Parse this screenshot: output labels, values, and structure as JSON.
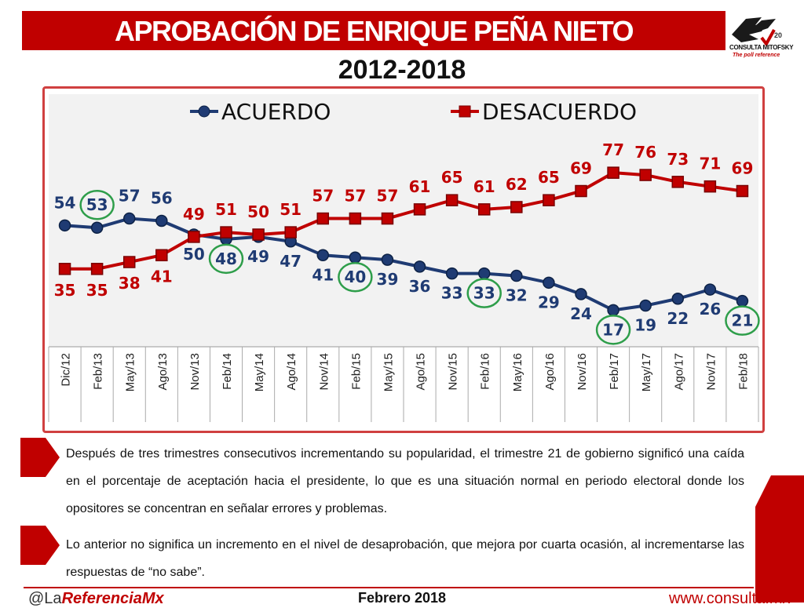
{
  "header": {
    "title": "APROBACIÓN DE ENRIQUE PEÑA NIETO",
    "subtitle": "2012-2018",
    "logo_name": "CONSULTA MITOFSKY",
    "logo_tagline": "The poll reference",
    "logo_badge": "20"
  },
  "chart_data": {
    "type": "line",
    "categories": [
      "Dic/12",
      "Feb/13",
      "May/13",
      "Ago/13",
      "Nov/13",
      "Feb/14",
      "May/14",
      "Ago/14",
      "Nov/14",
      "Feb/15",
      "May/15",
      "Ago/15",
      "Nov/15",
      "Feb/16",
      "May/16",
      "Ago/16",
      "Nov/16",
      "Feb/17",
      "May/17",
      "Ago/17",
      "Nov/17",
      "Feb/18"
    ],
    "series": [
      {
        "name": "ACUERDO",
        "color": "#1f3b73",
        "values": [
          54,
          53,
          57,
          56,
          50,
          48,
          49,
          47,
          41,
          40,
          39,
          36,
          33,
          33,
          32,
          29,
          24,
          17,
          19,
          22,
          26,
          21
        ]
      },
      {
        "name": "DESACUERDO",
        "color": "#c00000",
        "values": [
          35,
          35,
          38,
          41,
          49,
          51,
          50,
          51,
          57,
          57,
          57,
          61,
          65,
          61,
          62,
          65,
          69,
          77,
          76,
          73,
          71,
          69
        ]
      }
    ],
    "highlighted": {
      "ACUERDO": [
        "Feb/13",
        "Feb/14",
        "Feb/15",
        "Feb/16",
        "Feb/17",
        "Feb/18"
      ]
    },
    "highlight_color": "#2e9e4a",
    "legend_position": "top",
    "grid": false,
    "ylim": [
      0,
      100
    ],
    "title": "",
    "xlabel": "",
    "ylabel": ""
  },
  "body": {
    "paragraphs": [
      "Después de tres trimestres consecutivos incrementando su popularidad, el trimestre 21 de gobierno significó una caída en el porcentaje de aceptación hacia el presidente, lo que es una situación normal en periodo electoral donde los opositores se concentran en señalar errores y problemas.",
      "Lo anterior no significa un incremento en el nivel de desaprobación, que mejora por cuarta ocasión, al incrementarse las respuestas de “no sabe”."
    ]
  },
  "footer": {
    "handle_prefix": "@La",
    "handle_brand": "ReferenciaMx",
    "date": "Febrero 2018",
    "url": "www.consulta.mx"
  },
  "colors": {
    "accent": "#c00000",
    "acuerdo": "#1f3b73",
    "desacuerdo": "#c00000",
    "highlight": "#2e9e4a"
  }
}
